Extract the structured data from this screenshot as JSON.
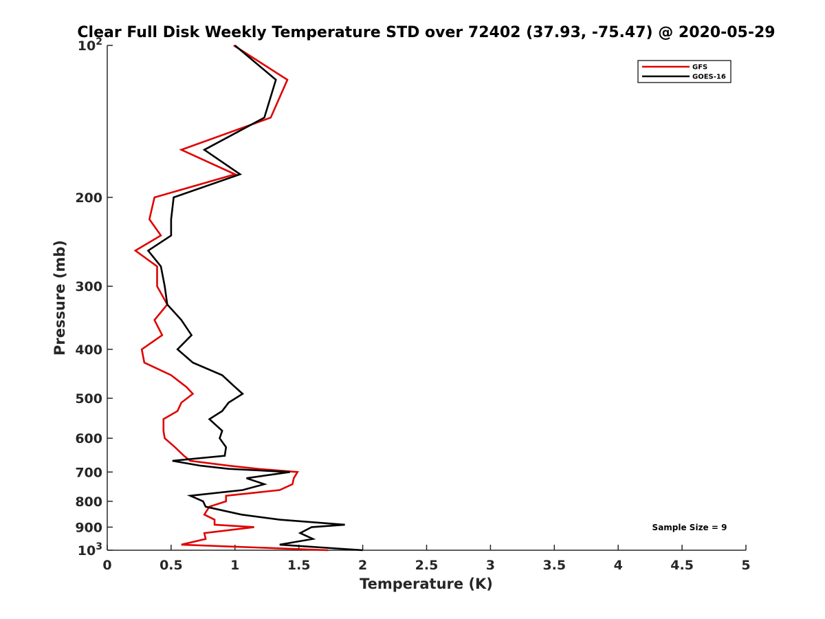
{
  "chart_data": {
    "type": "line",
    "title": "Clear Full Disk Weekly Temperature STD over 72402 (37.93, -75.47) @ 2020-05-29",
    "xlabel": "Temperature (K)",
    "ylabel": "Pressure (mb)",
    "xlim": [
      0,
      5
    ],
    "ylim": [
      100,
      1000
    ],
    "y_scale": "log",
    "y_reversed": true,
    "grid": false,
    "legend_position": "top-right",
    "x_ticks": [
      "0",
      "0.5",
      "1",
      "1.5",
      "2",
      "2.5",
      "3",
      "3.5",
      "4",
      "4.5",
      "5"
    ],
    "y_ticks": [
      {
        "value": 100,
        "base": "10",
        "exp": "2"
      },
      {
        "value": 200,
        "label": "200"
      },
      {
        "value": 300,
        "label": "300"
      },
      {
        "value": 400,
        "label": "400"
      },
      {
        "value": 500,
        "label": "500"
      },
      {
        "value": 600,
        "label": "600"
      },
      {
        "value": 700,
        "label": "700"
      },
      {
        "value": 800,
        "label": "800"
      },
      {
        "value": 900,
        "label": "900"
      },
      {
        "value": 1000,
        "base": "10",
        "exp": "3"
      }
    ],
    "annotation": "Sample Size = 9",
    "series": [
      {
        "name": "GFS",
        "color": "#e00000",
        "points": [
          [
            0.99,
            100
          ],
          [
            1.41,
            117
          ],
          [
            1.28,
            139
          ],
          [
            0.58,
            161
          ],
          [
            1.0,
            180
          ],
          [
            0.37,
            200
          ],
          [
            0.33,
            221
          ],
          [
            0.42,
            238
          ],
          [
            0.22,
            255
          ],
          [
            0.39,
            274
          ],
          [
            0.39,
            300
          ],
          [
            0.47,
            326
          ],
          [
            0.37,
            350
          ],
          [
            0.43,
            375
          ],
          [
            0.27,
            400
          ],
          [
            0.29,
            425
          ],
          [
            0.5,
            450
          ],
          [
            0.62,
            475
          ],
          [
            0.67,
            490
          ],
          [
            0.58,
            510
          ],
          [
            0.55,
            530
          ],
          [
            0.44,
            550
          ],
          [
            0.44,
            580
          ],
          [
            0.45,
            600
          ],
          [
            0.53,
            625
          ],
          [
            0.6,
            650
          ],
          [
            0.65,
            665
          ],
          [
            0.95,
            680
          ],
          [
            1.18,
            690
          ],
          [
            1.49,
            700
          ],
          [
            1.46,
            720
          ],
          [
            1.45,
            740
          ],
          [
            1.35,
            760
          ],
          [
            0.93,
            780
          ],
          [
            0.93,
            800
          ],
          [
            0.8,
            820
          ],
          [
            0.76,
            850
          ],
          [
            0.84,
            870
          ],
          [
            0.84,
            890
          ],
          [
            1.15,
            900
          ],
          [
            0.76,
            925
          ],
          [
            0.77,
            950
          ],
          [
            0.58,
            975
          ],
          [
            1.73,
            1000
          ]
        ]
      },
      {
        "name": "GOES-16",
        "color": "#000000",
        "points": [
          [
            1.0,
            100
          ],
          [
            1.32,
            117
          ],
          [
            1.23,
            139
          ],
          [
            0.76,
            161
          ],
          [
            1.04,
            180
          ],
          [
            0.52,
            200
          ],
          [
            0.5,
            221
          ],
          [
            0.5,
            238
          ],
          [
            0.32,
            255
          ],
          [
            0.42,
            274
          ],
          [
            0.45,
            300
          ],
          [
            0.47,
            326
          ],
          [
            0.58,
            350
          ],
          [
            0.66,
            375
          ],
          [
            0.55,
            400
          ],
          [
            0.67,
            425
          ],
          [
            0.9,
            450
          ],
          [
            1.0,
            475
          ],
          [
            1.06,
            490
          ],
          [
            0.95,
            510
          ],
          [
            0.9,
            530
          ],
          [
            0.8,
            550
          ],
          [
            0.9,
            580
          ],
          [
            0.88,
            600
          ],
          [
            0.93,
            625
          ],
          [
            0.92,
            650
          ],
          [
            0.51,
            665
          ],
          [
            0.73,
            680
          ],
          [
            0.95,
            690
          ],
          [
            1.43,
            700
          ],
          [
            1.09,
            720
          ],
          [
            1.23,
            740
          ],
          [
            1.06,
            760
          ],
          [
            0.65,
            780
          ],
          [
            0.75,
            800
          ],
          [
            0.77,
            820
          ],
          [
            1.05,
            850
          ],
          [
            1.35,
            870
          ],
          [
            1.86,
            890
          ],
          [
            1.6,
            900
          ],
          [
            1.51,
            925
          ],
          [
            1.61,
            950
          ],
          [
            1.35,
            975
          ],
          [
            2.0,
            1000
          ]
        ]
      }
    ]
  }
}
